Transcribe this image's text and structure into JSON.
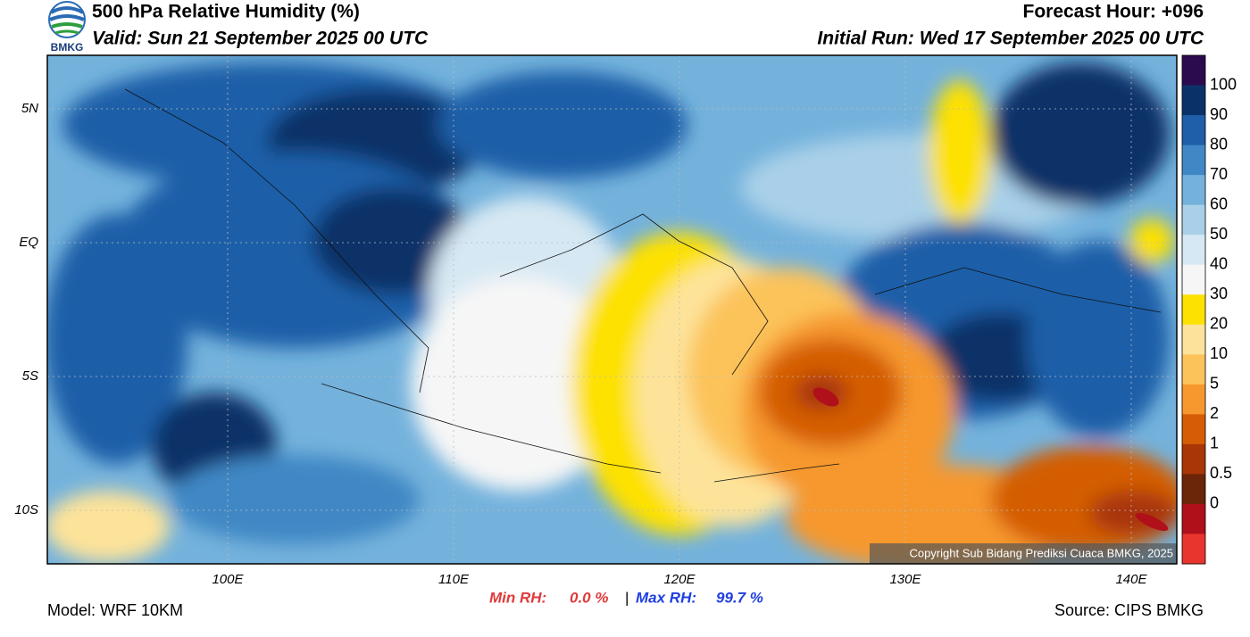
{
  "header": {
    "title": "500 hPa Relative Humidity (%)",
    "valid": "Valid: Sun 21 September 2025 00 UTC",
    "forecast_hour": "Forecast Hour: +096",
    "initial_run": "Initial Run: Wed 17 September 2025 00 UTC",
    "logo_text": "BMKG"
  },
  "map": {
    "lat_labels": [
      "5N",
      "EQ",
      "5S",
      "10S"
    ],
    "lon_labels": [
      "100E",
      "110E",
      "120E",
      "130E",
      "140E"
    ],
    "copyright": "Copyright Sub Bidang Prediksi Cuaca BMKG, 2025"
  },
  "colorbar": {
    "labels": [
      "100",
      "90",
      "80",
      "70",
      "60",
      "50",
      "40",
      "30",
      "20",
      "10",
      "5",
      "2",
      "1",
      "0.5",
      "0"
    ],
    "colors": [
      "#2b0a4e",
      "#0b3268",
      "#1f5ea8",
      "#3f88c5",
      "#74b2dc",
      "#a9d0e8",
      "#d6e8f3",
      "#f6f6f6",
      "#fde100",
      "#fde39a",
      "#fcc35a",
      "#f6982d",
      "#d45d06",
      "#a83607",
      "#6b2508",
      "#b0101a",
      "#e8352d"
    ]
  },
  "footer": {
    "model": "Model: WRF 10KM",
    "min_rh_label": "Min RH:",
    "min_rh": "0.0 %",
    "separator": "|",
    "max_rh_label": "Max RH:",
    "max_rh": "99.7 %",
    "source": "Source: CIPS BMKG"
  }
}
